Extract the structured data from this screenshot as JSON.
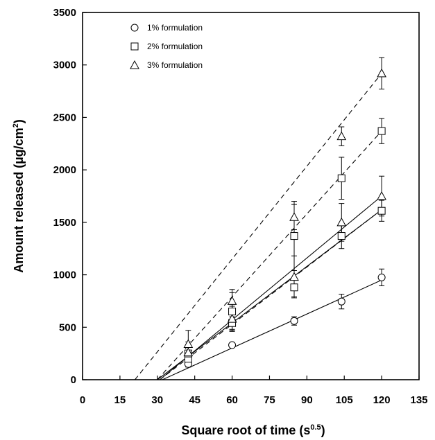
{
  "chart_data": {
    "type": "scatter",
    "xlabel": "Square root of time (s",
    "xlabel_sup": "0.5",
    "xlabel_end": ")",
    "ylabel": "Amount released (µg/cm",
    "ylabel_sup": "2",
    "ylabel_end": ")",
    "xlim": [
      0,
      135
    ],
    "ylim": [
      0,
      3500
    ],
    "xticks": [
      0,
      15,
      30,
      45,
      60,
      75,
      90,
      105,
      120,
      135
    ],
    "yticks": [
      0,
      500,
      1000,
      1500,
      2000,
      2500,
      3000,
      3500
    ],
    "legend_position": "top-left",
    "series": [
      {
        "name": "1% formulation",
        "marker": "circle",
        "x": [
          42.4,
          60,
          84.9,
          103.9,
          120
        ],
        "y": [
          150,
          330,
          560,
          745,
          975
        ],
        "err": [
          30,
          20,
          40,
          70,
          80
        ],
        "fits": [
          {
            "style": "solid",
            "x": [
              32,
              120
            ],
            "y": [
              0,
              950
            ]
          }
        ]
      },
      {
        "name": "2% formulation",
        "marker": "square",
        "x": [
          42.4,
          60,
          84.9,
          103.9,
          120,
          42.4,
          60,
          84.9,
          103.9,
          120
        ],
        "y": [
          200,
          540,
          880,
          1370,
          1610,
          250,
          650,
          1370,
          1920,
          2370
        ],
        "err": [
          70,
          60,
          90,
          120,
          100,
          110,
          180,
          330,
          200,
          120
        ],
        "fits": [
          {
            "style": "solid",
            "x": [
              30,
              120
            ],
            "y": [
              0,
              1620
            ]
          },
          {
            "style": "dashed",
            "x": [
              31,
              120
            ],
            "y": [
              0,
              1620
            ]
          },
          {
            "style": "dashed",
            "x": [
              30,
              120
            ],
            "y": [
              0,
              2370
            ]
          }
        ]
      },
      {
        "name": "3% formulation",
        "marker": "triangle",
        "x": [
          42.4,
          60,
          84.9,
          103.9,
          120,
          42.4,
          60,
          84.9,
          103.9,
          120
        ],
        "y": [
          260,
          580,
          980,
          1500,
          1750,
          340,
          750,
          1550,
          2320,
          2920
        ],
        "err": [
          100,
          120,
          200,
          180,
          190,
          130,
          110,
          120,
          90,
          150
        ],
        "fits": [
          {
            "style": "solid",
            "x": [
              31,
              120
            ],
            "y": [
              0,
              1750
            ]
          },
          {
            "style": "dashed",
            "x": [
              21,
              120
            ],
            "y": [
              0,
              2920
            ]
          }
        ]
      }
    ]
  }
}
